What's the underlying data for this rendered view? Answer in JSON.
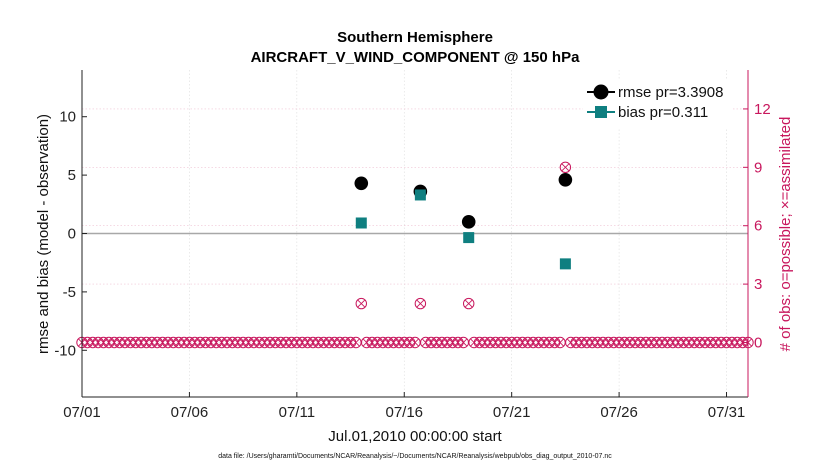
{
  "chart_data": {
    "type": "scatter",
    "title": "Southern Hemisphere",
    "subtitle": "AIRCRAFT_V_WIND_COMPONENT @ 150 hPa",
    "xlabel": "Jul.01,2010 00:00:00 start",
    "ylabel_left": "rmse and bias (model - observation)",
    "ylabel_right": "# of obs: o=possible; ×=assimilated",
    "xlim": [
      1,
      32
    ],
    "ylim_left": [
      -14,
      14
    ],
    "ylim_right": [
      -2.8,
      14.0
    ],
    "x_ticks": [
      {
        "value": 1,
        "label": "07/01"
      },
      {
        "value": 6,
        "label": "07/06"
      },
      {
        "value": 11,
        "label": "07/11"
      },
      {
        "value": 16,
        "label": "07/16"
      },
      {
        "value": 21,
        "label": "07/21"
      },
      {
        "value": 26,
        "label": "07/26"
      },
      {
        "value": 31,
        "label": "07/31"
      }
    ],
    "y_ticks_left": [
      {
        "value": -10,
        "label": "-10"
      },
      {
        "value": -5,
        "label": "-5"
      },
      {
        "value": 0,
        "label": "0"
      },
      {
        "value": 5,
        "label": "5"
      },
      {
        "value": 10,
        "label": "10"
      }
    ],
    "y_ticks_right": [
      {
        "value": 0,
        "label": "0"
      },
      {
        "value": 3,
        "label": "3"
      },
      {
        "value": 6,
        "label": "6"
      },
      {
        "value": 9,
        "label": "9"
      },
      {
        "value": 12,
        "label": "12"
      }
    ],
    "grid": true,
    "legend_position": "top-right",
    "series": [
      {
        "name": "rmse pr=3.3908",
        "color": "#000000",
        "marker": "circle",
        "points": [
          [
            14.0,
            4.3
          ],
          [
            16.75,
            3.6
          ],
          [
            19.0,
            1.0
          ],
          [
            23.5,
            4.6
          ]
        ]
      },
      {
        "name": "bias pr=0.311",
        "color": "#0f7f80",
        "marker": "square",
        "points": [
          [
            14.0,
            0.9
          ],
          [
            16.75,
            3.3
          ],
          [
            19.0,
            -0.35
          ],
          [
            23.5,
            -2.6
          ]
        ]
      }
    ],
    "obs_counts": {
      "color": "#c8175d",
      "x_start": 1.0,
      "x_end": 32.0,
      "x_step": 0.25,
      "baseline": 0,
      "nonzero": [
        [
          14.0,
          2
        ],
        [
          16.75,
          2
        ],
        [
          19.0,
          2
        ],
        [
          23.5,
          9
        ]
      ]
    },
    "footnote": "data file: /Users/gharamti/Documents/NCAR/Reanalysis/~/Documents/NCAR/Reanalysis/webpub/obs_diag_output_2010-07.nc"
  }
}
